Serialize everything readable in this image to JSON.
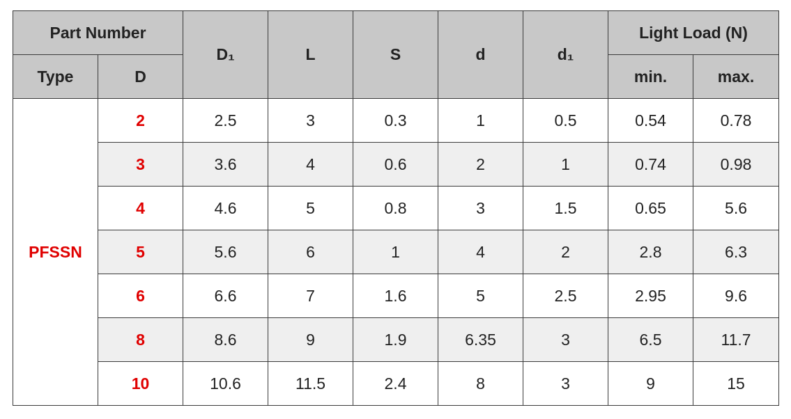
{
  "header": {
    "part_number": "Part Number",
    "type": "Type",
    "d_upper": "D",
    "d1_upper": "D₁",
    "l": "L",
    "s": "S",
    "d_lower": "d",
    "d1_lower": "d₁",
    "light_load": "Light Load (N)",
    "min": "min.",
    "max": "max."
  },
  "type_value": "PFSSN",
  "rows": [
    {
      "D": "2",
      "D1": "2.5",
      "L": "3",
      "S": "0.3",
      "d": "1",
      "d1": "0.5",
      "min": "0.54",
      "max": "0.78"
    },
    {
      "D": "3",
      "D1": "3.6",
      "L": "4",
      "S": "0.6",
      "d": "2",
      "d1": "1",
      "min": "0.74",
      "max": "0.98"
    },
    {
      "D": "4",
      "D1": "4.6",
      "L": "5",
      "S": "0.8",
      "d": "3",
      "d1": "1.5",
      "min": "0.65",
      "max": "5.6"
    },
    {
      "D": "5",
      "D1": "5.6",
      "L": "6",
      "S": "1",
      "d": "4",
      "d1": "2",
      "min": "2.8",
      "max": "6.3"
    },
    {
      "D": "6",
      "D1": "6.6",
      "L": "7",
      "S": "1.6",
      "d": "5",
      "d1": "2.5",
      "min": "2.95",
      "max": "9.6"
    },
    {
      "D": "8",
      "D1": "8.6",
      "L": "9",
      "S": "1.9",
      "d": "6.35",
      "d1": "3",
      "min": "6.5",
      "max": "11.7"
    },
    {
      "D": "10",
      "D1": "10.6",
      "L": "11.5",
      "S": "2.4",
      "d": "8",
      "d1": "3",
      "min": "9",
      "max": "15"
    }
  ],
  "colors": {
    "header_bg": "#c8c8c8",
    "shade_row_bg": "#efefef",
    "accent_red": "#e00000"
  }
}
